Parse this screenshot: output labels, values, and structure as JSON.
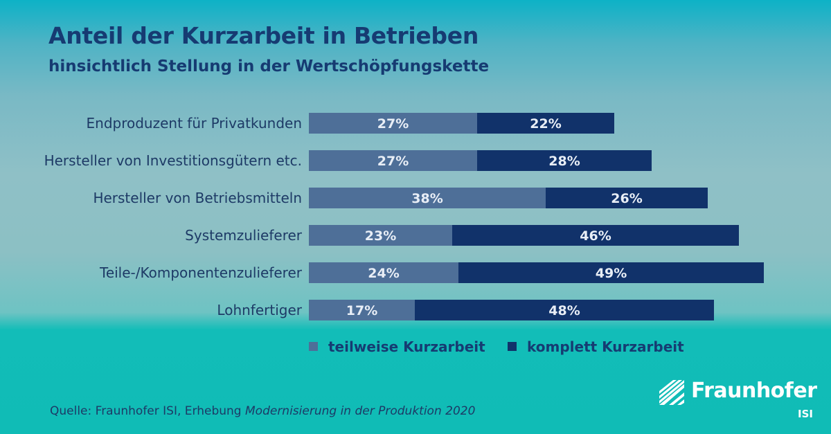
{
  "header": {
    "title": "Anteil der Kurzarbeit in Betrieben",
    "subtitle": "hinsichtlich Stellung in der Wertschöpfungskette"
  },
  "chart_data": {
    "type": "bar",
    "orientation": "horizontal",
    "stacked": true,
    "categories": [
      "Endproduzent für Privatkunden",
      "Hersteller von Investitionsgütern etc.",
      "Hersteller von Betriebsmitteln",
      "Systemzulieferer",
      "Teile-/Komponentenzulieferer",
      "Lohnfertiger"
    ],
    "series": [
      {
        "name": "teilweise Kurzarbeit",
        "values": [
          27,
          27,
          38,
          23,
          24,
          17
        ],
        "labels": [
          "27%",
          "27%",
          "38%",
          "23%",
          "24%",
          "17%"
        ],
        "color": "#4e6f98"
      },
      {
        "name": "komplett Kurzarbeit",
        "values": [
          22,
          28,
          26,
          46,
          49,
          48
        ],
        "labels": [
          "22%",
          "28%",
          "26%",
          "46%",
          "49%",
          "48%"
        ],
        "color": "#11326a"
      }
    ],
    "unit": "%",
    "legend_position": "bottom",
    "grid": false
  },
  "footer": {
    "source_prefix": "Quelle: Fraunhofer ISI, Erhebung ",
    "source_italic": "Modernisierung in der Produktion 2020"
  },
  "logo": {
    "word": "Fraunhofer",
    "sub": "ISI"
  }
}
